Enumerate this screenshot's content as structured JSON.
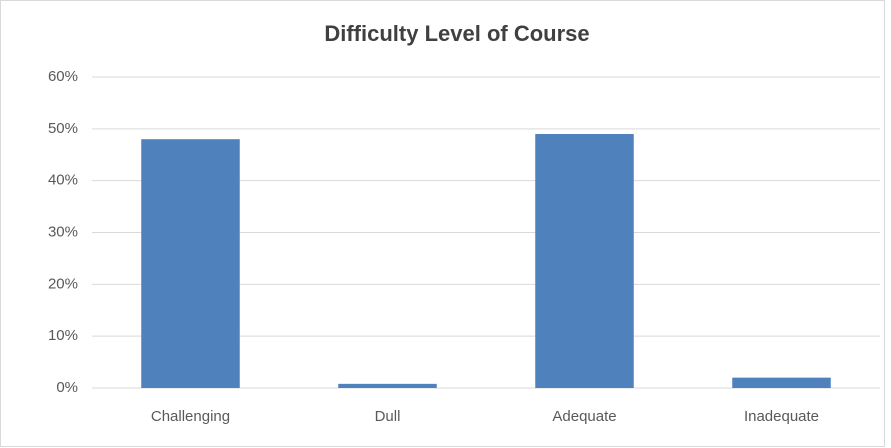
{
  "chart_data": {
    "type": "bar",
    "title": "Difficulty Level of Course",
    "categories": [
      "Challenging",
      "Dull",
      "Adequate",
      "Inadequate"
    ],
    "values": [
      48,
      0.8,
      49,
      2
    ],
    "color": "#4f81bd",
    "ylim": [
      0,
      60
    ],
    "yticks": [
      {
        "value": 0,
        "label": "0%"
      },
      {
        "value": 10,
        "label": "10%"
      },
      {
        "value": 20,
        "label": "20%"
      },
      {
        "value": 30,
        "label": "30%"
      },
      {
        "value": 40,
        "label": "40%"
      },
      {
        "value": 50,
        "label": "50%"
      },
      {
        "value": 60,
        "label": "60%"
      }
    ],
    "grid": true
  }
}
